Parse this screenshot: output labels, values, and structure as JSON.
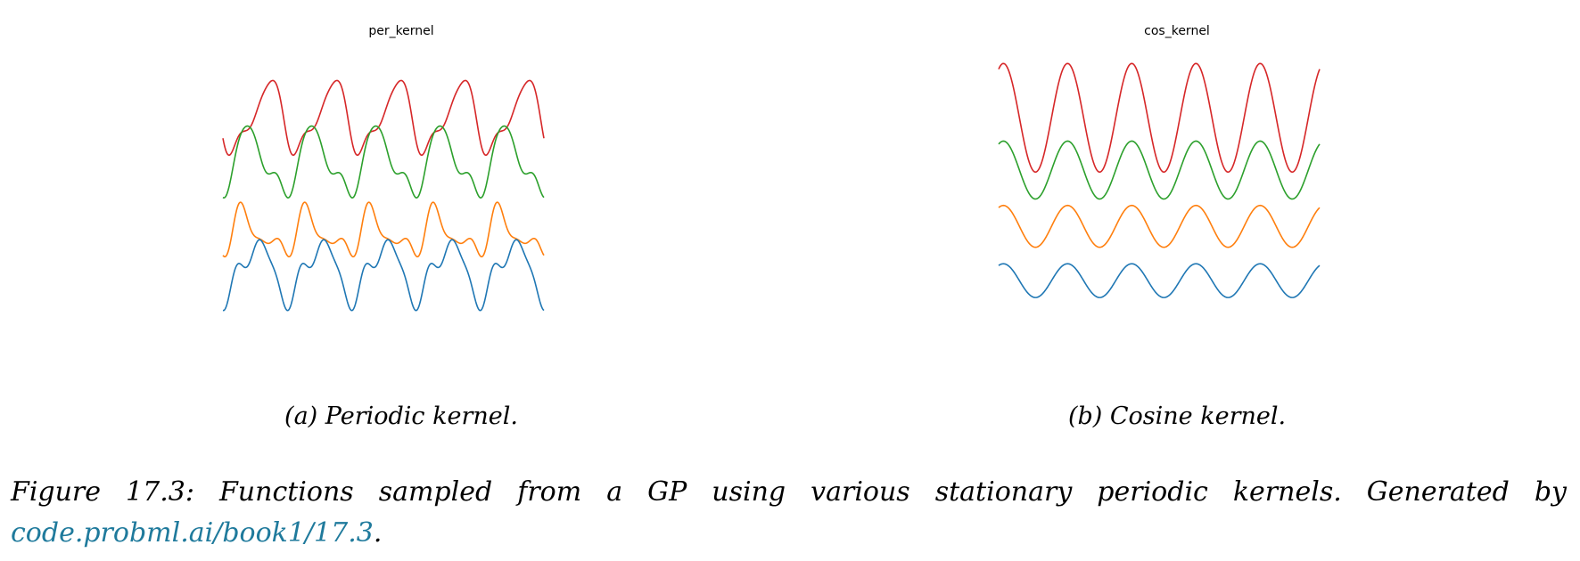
{
  "chart_data": [
    {
      "type": "line",
      "title": "per_kernel",
      "xlabel": "",
      "ylabel": "",
      "xlim": [
        0,
        1
      ],
      "grid": false,
      "axes_visible": false,
      "series": [
        {
          "color": "#d62728",
          "baseline": -1.0,
          "period": 0.2,
          "shape": [
            [
              1,
              1.0,
              0.3
            ],
            [
              2,
              0.35,
              1.0
            ],
            [
              3,
              0.12,
              0.4
            ]
          ]
        },
        {
          "color": "#2ca02c",
          "baseline": 0.1,
          "period": 0.2,
          "shape": [
            [
              1,
              0.95,
              2.1
            ],
            [
              2,
              0.35,
              0.5
            ],
            [
              3,
              0.12,
              1.2
            ]
          ]
        },
        {
          "color": "#ff7f0e",
          "baseline": 1.9,
          "period": 0.2,
          "shape": [
            [
              1,
              0.5,
              2.6
            ],
            [
              2,
              0.4,
              1.1
            ],
            [
              3,
              0.18,
              0.2
            ]
          ]
        },
        {
          "color": "#1f77b4",
          "baseline": 2.8,
          "period": 0.2,
          "shape": [
            [
              1,
              0.85,
              1.4
            ],
            [
              2,
              0.3,
              2.2
            ],
            [
              3,
              0.2,
              0.9
            ]
          ]
        }
      ]
    },
    {
      "type": "line",
      "title": "cos_kernel",
      "xlabel": "",
      "ylabel": "",
      "xlim": [
        0,
        1
      ],
      "grid": false,
      "axes_visible": false,
      "series": [
        {
          "color": "#d62728",
          "baseline": -1.0,
          "period": 0.2,
          "shape": [
            [
              1,
              1.35,
              4.25
            ]
          ]
        },
        {
          "color": "#2ca02c",
          "baseline": 0.3,
          "period": 0.2,
          "shape": [
            [
              1,
              0.72,
              4.25
            ]
          ]
        },
        {
          "color": "#ff7f0e",
          "baseline": 1.7,
          "period": 0.2,
          "shape": [
            [
              1,
              0.52,
              4.25
            ]
          ]
        },
        {
          "color": "#1f77b4",
          "baseline": 3.05,
          "period": 0.2,
          "shape": [
            [
              1,
              0.42,
              4.25
            ]
          ]
        }
      ]
    }
  ],
  "subcaptions": {
    "a": "(a) Periodic kernel.",
    "b": "(b) Cosine kernel."
  },
  "caption": {
    "text": "Figure 17.3: Functions sampled from a GP using various stationary periodic kernels. Generated by ",
    "link": "code.probml.ai/book1/17.3",
    "trailing": "."
  }
}
